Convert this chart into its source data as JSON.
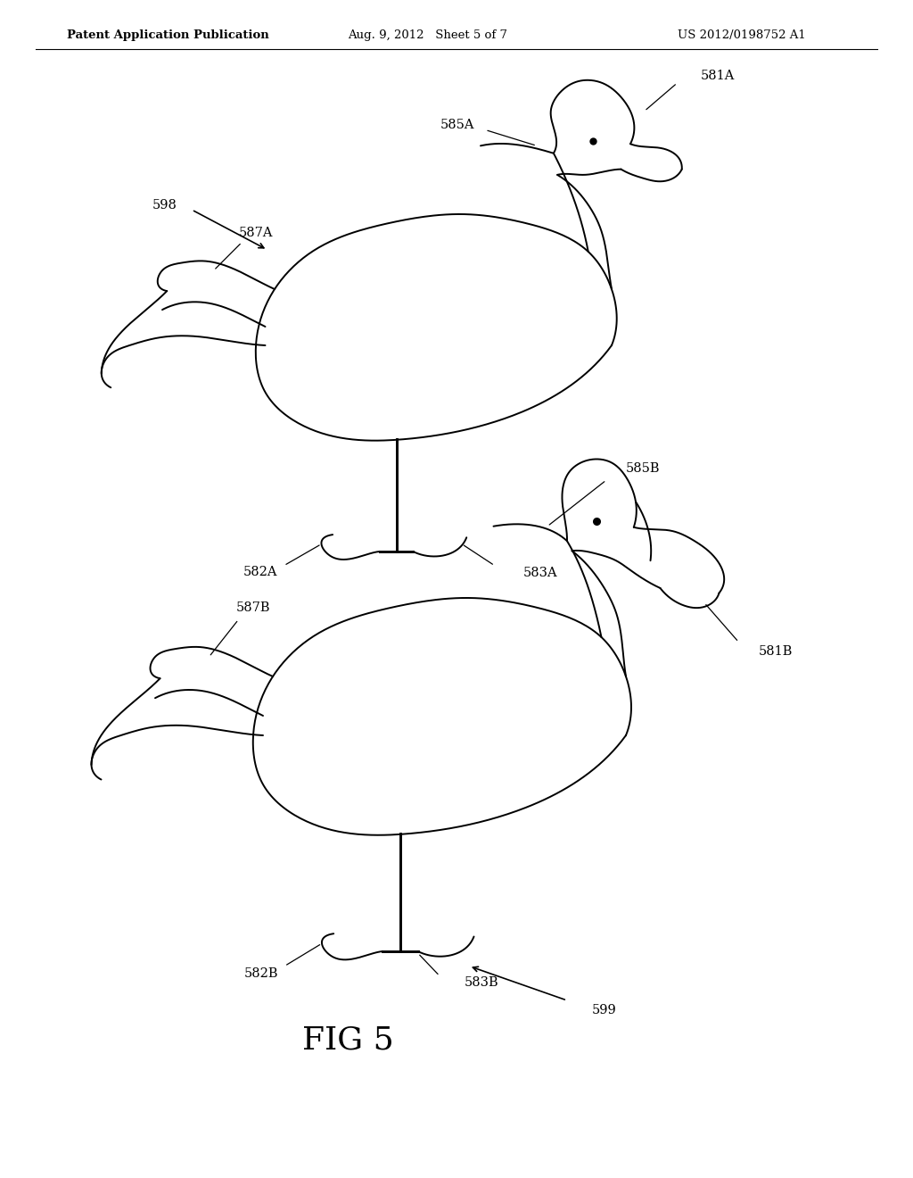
{
  "bg_color": "#ffffff",
  "header_left": "Patent Application Publication",
  "header_mid": "Aug. 9, 2012   Sheet 5 of 7",
  "header_right": "US 2012/0198752 A1",
  "fig_label": "FIG 5",
  "line_width": 1.4
}
